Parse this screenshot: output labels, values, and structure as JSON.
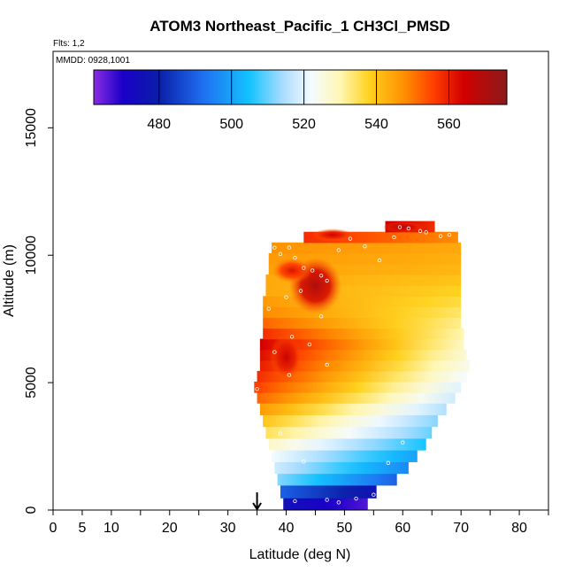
{
  "chart_data": {
    "type": "heatmap",
    "title": "ATOM3 Northeast_Pacific_1 CH3Cl_PMSD",
    "flights_label": "Flts: 1,2",
    "dates_label": "MMDD: 0928,1001",
    "xlabel": "Latitude (deg N)",
    "ylabel": "Altitude (m)",
    "xlim": [
      0,
      85
    ],
    "ylim": [
      0,
      18000
    ],
    "x_ticks": [
      0,
      5,
      10,
      20,
      30,
      40,
      50,
      60,
      70,
      80
    ],
    "x_minor_ticks": [
      15,
      25,
      35,
      45,
      55,
      65,
      75,
      85
    ],
    "y_ticks": [
      0,
      5000,
      10000,
      15000
    ],
    "colorbar": {
      "range": [
        462,
        576
      ],
      "ticks": [
        480,
        500,
        520,
        540,
        560
      ],
      "stops": [
        {
          "v": 462,
          "c": "#8a2be2"
        },
        {
          "v": 470,
          "c": "#1a00c8"
        },
        {
          "v": 480,
          "c": "#0a1ea8"
        },
        {
          "v": 492,
          "c": "#1e6ef0"
        },
        {
          "v": 505,
          "c": "#14c3ff"
        },
        {
          "v": 514,
          "c": "#a8dcff"
        },
        {
          "v": 522,
          "c": "#f5fbff"
        },
        {
          "v": 530,
          "c": "#fff7b4"
        },
        {
          "v": 538,
          "c": "#ffd21e"
        },
        {
          "v": 548,
          "c": "#ff8c00"
        },
        {
          "v": 556,
          "c": "#ff3c00"
        },
        {
          "v": 564,
          "c": "#d20000"
        },
        {
          "v": 576,
          "c": "#8b1a1a"
        }
      ]
    },
    "marker_latitude": 35,
    "bands": [
      {
        "alt": 0,
        "h": 480,
        "x0": 39.5,
        "x1": 54,
        "v0": 475,
        "v1": 466
      },
      {
        "alt": 480,
        "h": 500,
        "x0": 39,
        "x1": 55.5,
        "v0": 490,
        "v1": 476
      },
      {
        "alt": 980,
        "h": 460,
        "x0": 38.5,
        "x1": 59,
        "v0": 512,
        "v1": 490
      },
      {
        "alt": 1440,
        "h": 460,
        "x0": 38,
        "x1": 61,
        "v0": 518,
        "v1": 496
      },
      {
        "alt": 1900,
        "h": 460,
        "x0": 37.5,
        "x1": 62.5,
        "v0": 522,
        "v1": 500
      },
      {
        "alt": 2360,
        "h": 460,
        "x0": 37,
        "x1": 64,
        "v0": 528,
        "v1": 505
      },
      {
        "alt": 2820,
        "h": 460,
        "x0": 36.5,
        "x1": 65,
        "v0": 535,
        "v1": 510
      },
      {
        "alt": 3280,
        "h": 460,
        "x0": 36,
        "x1": 66,
        "v0": 540,
        "v1": 512
      },
      {
        "alt": 3740,
        "h": 460,
        "x0": 35.5,
        "x1": 67.5,
        "v0": 546,
        "v1": 515
      },
      {
        "alt": 4200,
        "h": 420,
        "x0": 35,
        "x1": 69,
        "v0": 552,
        "v1": 518
      },
      {
        "alt": 4620,
        "h": 420,
        "x0": 34.5,
        "x1": 70,
        "v0": 556,
        "v1": 520
      },
      {
        "alt": 5040,
        "h": 420,
        "x0": 35,
        "x1": 71,
        "v0": 558,
        "v1": 522
      },
      {
        "alt": 5460,
        "h": 420,
        "x0": 35.5,
        "x1": 71.5,
        "v0": 560,
        "v1": 524
      },
      {
        "alt": 5880,
        "h": 420,
        "x0": 35.5,
        "x1": 71,
        "v0": 562,
        "v1": 526
      },
      {
        "alt": 6300,
        "h": 420,
        "x0": 35.5,
        "x1": 70.5,
        "v0": 564,
        "v1": 528
      },
      {
        "alt": 6720,
        "h": 420,
        "x0": 36,
        "x1": 70.5,
        "v0": 558,
        "v1": 530
      },
      {
        "alt": 7140,
        "h": 420,
        "x0": 36,
        "x1": 70,
        "v0": 552,
        "v1": 532
      },
      {
        "alt": 7560,
        "h": 420,
        "x0": 36,
        "x1": 70,
        "v0": 548,
        "v1": 534
      },
      {
        "alt": 7980,
        "h": 420,
        "x0": 36,
        "x1": 70,
        "v0": 546,
        "v1": 536
      },
      {
        "alt": 8400,
        "h": 420,
        "x0": 36.5,
        "x1": 70,
        "v0": 544,
        "v1": 538
      },
      {
        "alt": 8820,
        "h": 420,
        "x0": 36.5,
        "x1": 70,
        "v0": 544,
        "v1": 540
      },
      {
        "alt": 9240,
        "h": 420,
        "x0": 37,
        "x1": 70,
        "v0": 545,
        "v1": 542
      },
      {
        "alt": 9660,
        "h": 420,
        "x0": 37,
        "x1": 70,
        "v0": 546,
        "v1": 543
      },
      {
        "alt": 10080,
        "h": 420,
        "x0": 37.5,
        "x1": 70,
        "v0": 547,
        "v1": 544
      },
      {
        "alt": 10500,
        "h": 420,
        "x0": 43,
        "x1": 69.5,
        "v0": 558,
        "v1": 548
      },
      {
        "alt": 10920,
        "h": 420,
        "x0": 57,
        "x1": 65.5,
        "v0": 566,
        "v1": 558
      }
    ],
    "hotspots": [
      {
        "lat": 45,
        "alt": 8800,
        "rx": 4.5,
        "ry": 1100,
        "v": 570
      },
      {
        "lat": 40,
        "alt": 6000,
        "rx": 2.8,
        "ry": 900,
        "v": 566
      },
      {
        "lat": 41,
        "alt": 9400,
        "rx": 3.5,
        "ry": 500,
        "v": 562
      },
      {
        "lat": 48,
        "alt": 10800,
        "rx": 3.5,
        "ry": 250,
        "v": 565
      },
      {
        "lat": 60,
        "alt": 11100,
        "rx": 3.5,
        "ry": 220,
        "v": 568
      }
    ],
    "points": [
      [
        38,
        10300
      ],
      [
        39,
        10050
      ],
      [
        40.5,
        10300
      ],
      [
        41.5,
        9900
      ],
      [
        43,
        9500
      ],
      [
        44.5,
        9400
      ],
      [
        46,
        9200
      ],
      [
        49,
        10200
      ],
      [
        51,
        10650
      ],
      [
        53.5,
        10350
      ],
      [
        56,
        9800
      ],
      [
        58.5,
        10700
      ],
      [
        59.5,
        11100
      ],
      [
        61,
        11050
      ],
      [
        63,
        10950
      ],
      [
        64,
        10900
      ],
      [
        66.5,
        10750
      ],
      [
        68,
        10800
      ],
      [
        47,
        9000
      ],
      [
        42.5,
        8600
      ],
      [
        40,
        8350
      ],
      [
        37,
        7900
      ],
      [
        46,
        7600
      ],
      [
        41,
        6800
      ],
      [
        44,
        6500
      ],
      [
        38,
        6200
      ],
      [
        47,
        5700
      ],
      [
        40.5,
        5300
      ],
      [
        35,
        4750
      ],
      [
        39,
        3000
      ],
      [
        37.5,
        2300
      ],
      [
        43,
        1900
      ],
      [
        57.5,
        1850
      ],
      [
        60,
        2650
      ],
      [
        41.5,
        350
      ],
      [
        47,
        400
      ],
      [
        49,
        300
      ],
      [
        52,
        450
      ],
      [
        55,
        600
      ]
    ]
  }
}
